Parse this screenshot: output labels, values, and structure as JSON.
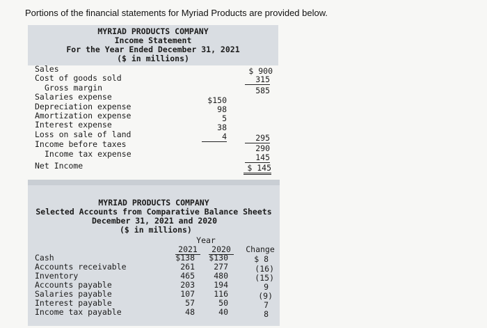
{
  "prompt": "Portions of the financial statements for Myriad Products are provided below.",
  "income_statement": {
    "company": "MYRIAD PRODUCTS COMPANY",
    "title": "Income Statement",
    "period": "For the Year Ended December 31, 2021",
    "units": "($ in millions)",
    "sales_label": "Sales",
    "sales_value": "$ 900",
    "cogs_label": "Cost of goods sold",
    "cogs_value": "315",
    "gross_label": "Gross margin",
    "gross_value": "585",
    "salaries_label": "Salaries expense",
    "salaries_value": "$150",
    "depreciation_label": "Depreciation expense",
    "depreciation_value": "98",
    "amortization_label": "Amortization expense",
    "amortization_value": "5",
    "interest_label": "Interest expense",
    "interest_value": "38",
    "loss_label": "Loss on sale of land",
    "loss_value": "4",
    "total_expenses_value": "295",
    "ibt_label": "Income before taxes",
    "ibt_value": "290",
    "tax_label": "Income tax expense",
    "tax_value": "145",
    "net_label": "Net Income",
    "net_value": "$ 145"
  },
  "balance_sheet": {
    "company": "MYRIAD PRODUCTS COMPANY",
    "title": "Selected Accounts from Comparative Balance Sheets",
    "dates": "December 31, 2021 and 2020",
    "units": "($ in millions)",
    "year_label": "Year",
    "col_2021": "2021",
    "col_2020": "2020",
    "col_change": "Change",
    "rows": [
      {
        "label": "Cash",
        "y2021": "$138",
        "y2020": "$130",
        "change": "$ 8"
      },
      {
        "label": "Accounts receivable",
        "y2021": "261",
        "y2020": "277",
        "change": "(16)"
      },
      {
        "label": "Inventory",
        "y2021": "465",
        "y2020": "480",
        "change": "(15)"
      },
      {
        "label": "Accounts payable",
        "y2021": "203",
        "y2020": "194",
        "change": "9"
      },
      {
        "label": "Salaries payable",
        "y2021": "107",
        "y2020": "116",
        "change": "(9)"
      },
      {
        "label": "Interest payable",
        "y2021": "57",
        "y2020": "50",
        "change": "7"
      },
      {
        "label": "Income tax payable",
        "y2021": "48",
        "y2020": "40",
        "change": "8"
      }
    ]
  }
}
